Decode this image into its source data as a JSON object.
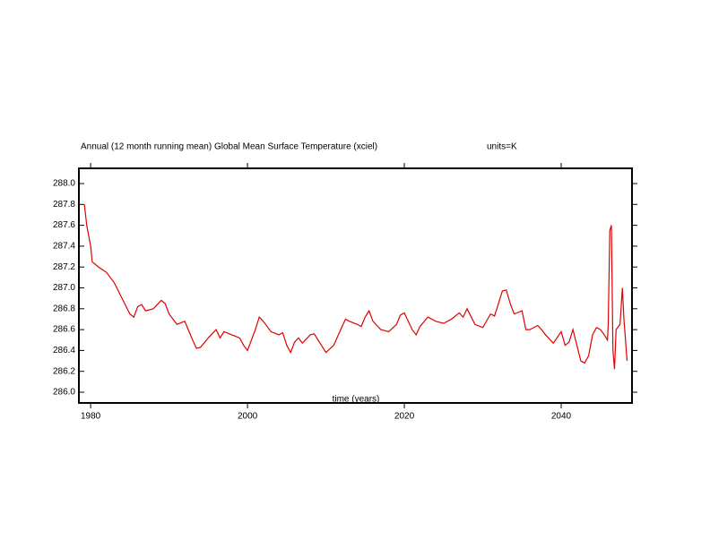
{
  "chart_data": {
    "type": "line",
    "title": "Annual (12 month running mean) Global Mean Surface Temperature (xciel)",
    "subtitle": "units=K",
    "x_label": "time (years)",
    "xlim": [
      1978.5,
      2049.03
    ],
    "ylim": [
      285.897,
      288.146
    ],
    "xticks": [
      1980,
      2000,
      2020,
      2040
    ],
    "yticks": [
      {
        "value": 286.0,
        "label": "286.0"
      },
      {
        "value": 286.2,
        "label": "286.2"
      },
      {
        "value": 286.4,
        "label": "286.4"
      },
      {
        "value": 286.6,
        "label": "286.6"
      },
      {
        "value": 286.8,
        "label": "286.8"
      },
      {
        "value": 287.0,
        "label": "287.0"
      },
      {
        "value": 287.2,
        "label": "287.2"
      },
      {
        "value": 287.4,
        "label": "287.4"
      },
      {
        "value": 287.6,
        "label": "287.6"
      },
      {
        "value": 287.8,
        "label": "287.8"
      },
      {
        "value": 288.0,
        "label": "288.0"
      }
    ],
    "series": [
      {
        "name": "Global Mean Surface Temperature",
        "color": "#e00000",
        "x": [
          1979.2,
          1979.5,
          1980,
          1980.2,
          1981,
          1982,
          1983,
          1984,
          1985,
          1985.5,
          1986,
          1986.5,
          1987,
          1988,
          1989,
          1989.5,
          1990,
          1991,
          1992,
          1993,
          1993.5,
          1994,
          1995,
          1996,
          1996.5,
          1997,
          1998,
          1999,
          1999.5,
          2000,
          2001,
          2001.5,
          2002,
          2003,
          2004,
          2004.5,
          2005,
          2005.5,
          2006,
          2006.5,
          2007,
          2008,
          2008.5,
          2009,
          2010,
          2011,
          2012,
          2012.5,
          2013,
          2014,
          2014.5,
          2015,
          2015.5,
          2016,
          2017,
          2018,
          2019,
          2019.5,
          2020,
          2021,
          2021.5,
          2022,
          2023,
          2024,
          2025,
          2026,
          2027,
          2027.5,
          2028,
          2029,
          2030,
          2031,
          2031.5,
          2032,
          2032.5,
          2033,
          2033.5,
          2034,
          2035,
          2035.5,
          2036,
          2037,
          2037.5,
          2038,
          2039,
          2040,
          2040.5,
          2041,
          2041.5,
          2042,
          2042.5,
          2043,
          2043.5,
          2044,
          2044.5,
          2045,
          2045.5,
          2045.9,
          2046,
          2046.2,
          2046.4,
          2046.6,
          2046.8,
          2047,
          2047.5,
          2047.8,
          2048,
          2048.4
        ],
        "values": [
          287.8,
          287.6,
          287.4,
          287.25,
          287.2,
          287.15,
          287.05,
          286.9,
          286.75,
          286.72,
          286.82,
          286.84,
          286.78,
          286.8,
          286.88,
          286.85,
          286.75,
          286.65,
          286.68,
          286.5,
          286.42,
          286.43,
          286.52,
          286.6,
          286.52,
          286.58,
          286.55,
          286.52,
          286.45,
          286.4,
          286.6,
          286.72,
          286.68,
          286.58,
          286.55,
          286.57,
          286.45,
          286.38,
          286.48,
          286.52,
          286.47,
          286.55,
          286.56,
          286.5,
          286.38,
          286.45,
          286.62,
          286.7,
          286.68,
          286.65,
          286.63,
          286.72,
          286.78,
          286.68,
          286.6,
          286.58,
          286.65,
          286.74,
          286.76,
          286.6,
          286.55,
          286.63,
          286.72,
          286.68,
          286.66,
          286.7,
          286.76,
          286.72,
          286.8,
          286.65,
          286.62,
          286.75,
          286.73,
          286.85,
          286.97,
          286.98,
          286.85,
          286.75,
          286.78,
          286.6,
          286.6,
          286.64,
          286.6,
          286.55,
          286.47,
          286.58,
          286.45,
          286.48,
          286.6,
          286.45,
          286.3,
          286.28,
          286.35,
          286.55,
          286.62,
          286.6,
          286.55,
          286.5,
          286.65,
          287.55,
          287.6,
          286.4,
          286.22,
          286.6,
          286.65,
          287.0,
          286.7,
          286.3
        ]
      }
    ]
  }
}
